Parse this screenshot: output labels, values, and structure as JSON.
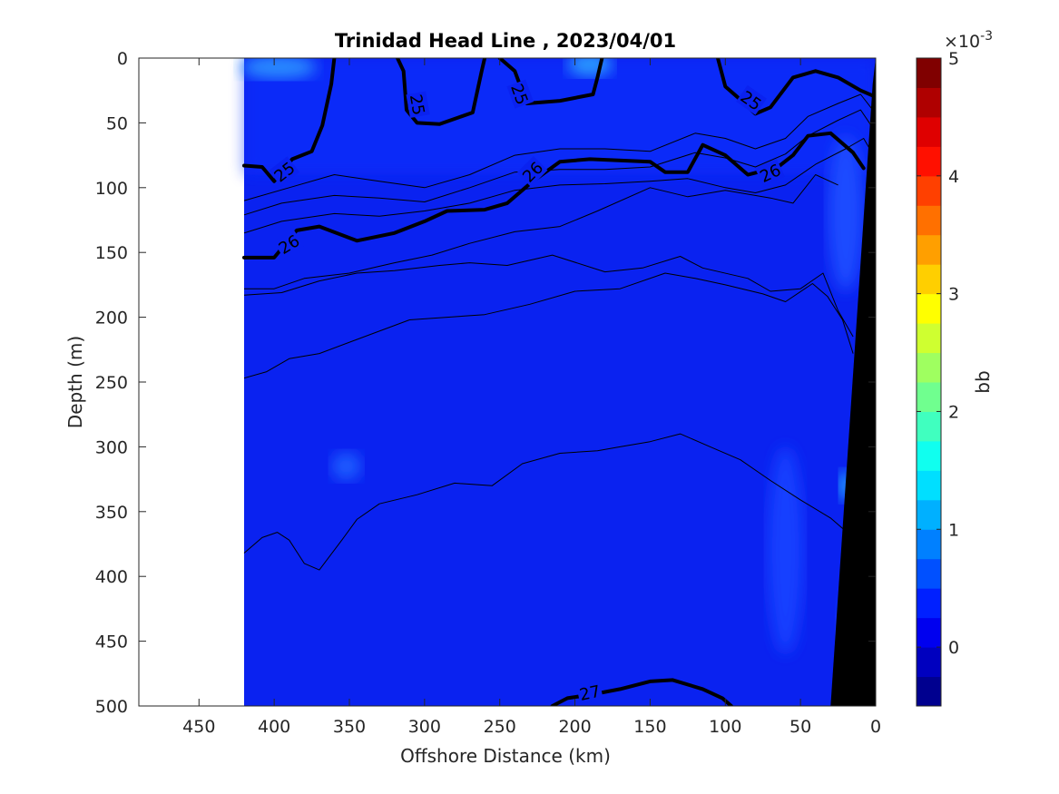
{
  "chart_data": {
    "type": "contour",
    "title": "Trinidad Head Line , 2023/04/01",
    "xlabel": "Offshore Distance (km)",
    "ylabel": "Depth (m)",
    "xlim": [
      490,
      0
    ],
    "ylim": [
      0,
      500
    ],
    "x_ticks": [
      "450",
      "400",
      "350",
      "300",
      "250",
      "200",
      "150",
      "100",
      "50",
      "0"
    ],
    "x_tick_values": [
      450,
      400,
      350,
      300,
      250,
      200,
      150,
      100,
      50,
      0
    ],
    "y_ticks": [
      "0",
      "50",
      "100",
      "150",
      "200",
      "250",
      "300",
      "350",
      "400",
      "450",
      "500"
    ],
    "y_tick_values": [
      0,
      50,
      100,
      150,
      200,
      250,
      300,
      350,
      400,
      450,
      500
    ],
    "data_extent_km": [
      420,
      0
    ],
    "colorbar": {
      "label": "bb",
      "exponent": "×10",
      "exponent_power": "-3",
      "range": [
        -0.5,
        5
      ],
      "ticks": [
        "0",
        "1",
        "2",
        "3",
        "4",
        "5"
      ],
      "tick_values": [
        0,
        1,
        2,
        3,
        4,
        5
      ],
      "colors": [
        "#00008f",
        "#0000bf",
        "#0000ef",
        "#0020ff",
        "#0050ff",
        "#0080ff",
        "#00b0ff",
        "#00dfff",
        "#10ffef",
        "#40ffbf",
        "#70ff8f",
        "#9fff60",
        "#cfff30",
        "#ffff00",
        "#ffcf00",
        "#ff9f00",
        "#ff7000",
        "#ff4000",
        "#ff1000",
        "#df0000",
        "#af0000",
        "#800000"
      ]
    },
    "background_color": "#0a22f0",
    "contour_labels": [
      {
        "text": "25",
        "km": 393,
        "depth": 88,
        "angle": -38
      },
      {
        "text": "25",
        "km": 305,
        "depth": 36,
        "angle": 80
      },
      {
        "text": "25",
        "km": 237,
        "depth": 28,
        "angle": 70
      },
      {
        "text": "25",
        "km": 83,
        "depth": 33,
        "angle": 35
      },
      {
        "text": "26",
        "km": 390,
        "depth": 144,
        "angle": -32
      },
      {
        "text": "26",
        "km": 228,
        "depth": 88,
        "angle": -45
      },
      {
        "text": "26",
        "km": 70,
        "depth": 89,
        "angle": -25
      },
      {
        "text": "27",
        "km": 190,
        "depth": 490,
        "angle": -12
      }
    ],
    "bold_isopycnals": [
      {
        "level": "25",
        "points": [
          [
            420,
            83
          ],
          [
            408,
            84
          ],
          [
            400,
            95
          ],
          [
            388,
            78
          ],
          [
            375,
            72
          ],
          [
            368,
            52
          ],
          [
            362,
            20
          ],
          [
            360,
            0
          ]
        ]
      },
      {
        "level": "25",
        "points": [
          [
            318,
            0
          ],
          [
            314,
            10
          ],
          [
            312,
            40
          ],
          [
            305,
            50
          ],
          [
            290,
            51
          ],
          [
            268,
            42
          ],
          [
            262,
            10
          ],
          [
            260,
            0
          ]
        ]
      },
      {
        "level": "25",
        "points": [
          [
            250,
            0
          ],
          [
            240,
            10
          ],
          [
            232,
            35
          ],
          [
            210,
            33
          ],
          [
            188,
            28
          ],
          [
            185,
            15
          ],
          [
            182,
            0
          ]
        ]
      },
      {
        "level": "25",
        "points": [
          [
            105,
            0
          ],
          [
            100,
            22
          ],
          [
            92,
            30
          ],
          [
            80,
            43
          ],
          [
            70,
            38
          ],
          [
            55,
            15
          ],
          [
            40,
            10
          ],
          [
            25,
            15
          ],
          [
            10,
            25
          ],
          [
            0,
            30
          ]
        ]
      },
      {
        "level": "26",
        "points": [
          [
            420,
            154
          ],
          [
            400,
            154
          ],
          [
            385,
            133
          ],
          [
            370,
            130
          ],
          [
            345,
            141
          ],
          [
            320,
            135
          ],
          [
            300,
            126
          ],
          [
            285,
            118
          ],
          [
            260,
            117
          ],
          [
            245,
            112
          ],
          [
            228,
            95
          ],
          [
            210,
            80
          ],
          [
            190,
            78
          ],
          [
            150,
            80
          ],
          [
            140,
            88
          ],
          [
            125,
            88
          ],
          [
            115,
            67
          ],
          [
            100,
            75
          ],
          [
            85,
            90
          ],
          [
            65,
            84
          ],
          [
            55,
            75
          ],
          [
            45,
            60
          ],
          [
            30,
            58
          ],
          [
            15,
            73
          ],
          [
            8,
            85
          ]
        ]
      },
      {
        "level": "27",
        "points": [
          [
            215,
            500
          ],
          [
            205,
            494
          ],
          [
            188,
            491
          ],
          [
            170,
            487
          ],
          [
            150,
            481
          ],
          [
            135,
            480
          ],
          [
            115,
            487
          ],
          [
            102,
            494
          ],
          [
            96,
            500
          ]
        ]
      }
    ],
    "thin_contours": [
      [
        [
          420,
          110
        ],
        [
          390,
          100
        ],
        [
          360,
          90
        ],
        [
          330,
          95
        ],
        [
          300,
          100
        ],
        [
          270,
          90
        ],
        [
          240,
          75
        ],
        [
          210,
          70
        ],
        [
          180,
          70
        ],
        [
          150,
          72
        ],
        [
          120,
          58
        ],
        [
          100,
          62
        ],
        [
          80,
          70
        ],
        [
          60,
          62
        ],
        [
          45,
          45
        ],
        [
          25,
          35
        ],
        [
          10,
          28
        ],
        [
          2,
          40
        ]
      ],
      [
        [
          420,
          121
        ],
        [
          395,
          112
        ],
        [
          360,
          106
        ],
        [
          330,
          108
        ],
        [
          300,
          111
        ],
        [
          270,
          100
        ],
        [
          240,
          88
        ],
        [
          210,
          86
        ],
        [
          180,
          86
        ],
        [
          150,
          84
        ],
        [
          120,
          73
        ],
        [
          100,
          77
        ],
        [
          80,
          84
        ],
        [
          60,
          74
        ],
        [
          45,
          60
        ],
        [
          25,
          48
        ],
        [
          10,
          40
        ],
        [
          3,
          52
        ]
      ],
      [
        [
          420,
          135
        ],
        [
          395,
          126
        ],
        [
          360,
          120
        ],
        [
          330,
          122
        ],
        [
          300,
          118
        ],
        [
          270,
          112
        ],
        [
          240,
          102
        ],
        [
          210,
          98
        ],
        [
          180,
          97
        ],
        [
          150,
          95
        ],
        [
          125,
          93
        ],
        [
          100,
          100
        ],
        [
          80,
          104
        ],
        [
          60,
          98
        ],
        [
          40,
          82
        ],
        [
          20,
          70
        ],
        [
          8,
          62
        ],
        [
          4,
          70
        ]
      ],
      [
        [
          420,
          178
        ],
        [
          400,
          178
        ],
        [
          380,
          170
        ],
        [
          350,
          166
        ],
        [
          320,
          158
        ],
        [
          295,
          152
        ],
        [
          270,
          143
        ],
        [
          240,
          134
        ],
        [
          210,
          130
        ],
        [
          185,
          118
        ],
        [
          150,
          100
        ],
        [
          125,
          107
        ],
        [
          100,
          102
        ],
        [
          70,
          108
        ],
        [
          55,
          112
        ],
        [
          40,
          90
        ],
        [
          25,
          98
        ]
      ],
      [
        [
          420,
          183
        ],
        [
          395,
          181
        ],
        [
          370,
          172
        ],
        [
          345,
          166
        ],
        [
          320,
          164
        ],
        [
          290,
          160
        ],
        [
          270,
          158
        ],
        [
          245,
          160
        ],
        [
          215,
          152
        ],
        [
          180,
          165
        ],
        [
          155,
          162
        ],
        [
          130,
          153
        ],
        [
          115,
          162
        ],
        [
          85,
          170
        ],
        [
          70,
          180
        ],
        [
          50,
          178
        ],
        [
          35,
          166
        ],
        [
          25,
          195
        ],
        [
          15,
          215
        ]
      ],
      [
        [
          420,
          247
        ],
        [
          405,
          242
        ],
        [
          390,
          232
        ],
        [
          370,
          228
        ],
        [
          340,
          215
        ],
        [
          310,
          202
        ],
        [
          285,
          200
        ],
        [
          260,
          198
        ],
        [
          230,
          190
        ],
        [
          200,
          180
        ],
        [
          170,
          178
        ],
        [
          140,
          166
        ],
        [
          120,
          170
        ],
        [
          100,
          175
        ],
        [
          75,
          182
        ],
        [
          60,
          188
        ],
        [
          42,
          174
        ],
        [
          32,
          184
        ],
        [
          22,
          202
        ],
        [
          15,
          228
        ]
      ],
      [
        [
          420,
          382
        ],
        [
          408,
          370
        ],
        [
          398,
          366
        ],
        [
          390,
          372
        ],
        [
          380,
          390
        ],
        [
          370,
          395
        ],
        [
          355,
          372
        ],
        [
          345,
          356
        ],
        [
          330,
          344
        ],
        [
          305,
          337
        ],
        [
          280,
          328
        ],
        [
          255,
          330
        ],
        [
          235,
          313
        ],
        [
          210,
          305
        ],
        [
          185,
          303
        ],
        [
          170,
          300
        ],
        [
          150,
          296
        ],
        [
          130,
          290
        ],
        [
          110,
          300
        ],
        [
          90,
          310
        ],
        [
          70,
          326
        ],
        [
          50,
          341
        ],
        [
          30,
          355
        ],
        [
          15,
          370
        ]
      ]
    ],
    "light_patches": [
      {
        "km": 397,
        "depth": 7,
        "rx_km": 25,
        "ry_m": 9,
        "color": "#2a8cff"
      },
      {
        "km": 190,
        "depth": 5,
        "rx_km": 15,
        "ry_m": 9,
        "color": "#2a9aff"
      },
      {
        "km": 352,
        "depth": 315,
        "rx_km": 10,
        "ry_m": 11,
        "color": "#1a5cff"
      },
      {
        "km": 20,
        "depth": 330,
        "rx_km": 4,
        "ry_m": 12,
        "color": "#28c0ff"
      },
      {
        "km": 20,
        "depth": 120,
        "rx_km": 12,
        "ry_m": 60,
        "color": "#1a4cff"
      },
      {
        "km": 60,
        "depth": 380,
        "rx_km": 12,
        "ry_m": 80,
        "color": "#1340ff"
      },
      {
        "km": 15,
        "depth": 460,
        "rx_km": 10,
        "ry_m": 45,
        "color": "#1a4cff"
      }
    ],
    "bathymetry": {
      "color": "#000000",
      "points": [
        [
          0,
          0
        ],
        [
          0,
          500
        ],
        [
          30,
          500
        ],
        [
          2,
          20
        ]
      ]
    }
  }
}
